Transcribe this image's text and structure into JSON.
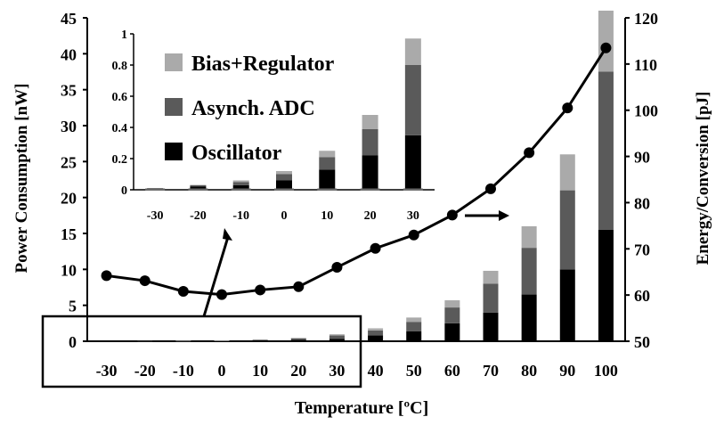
{
  "chart_data": {
    "type": "bar",
    "x_label": "Temperature [ºC]",
    "y_label_left": "Power Consumption [nW]",
    "y_label_right": "Energy/Conversion [pJ]",
    "categories": [
      "-30",
      "-20",
      "-10",
      "0",
      "10",
      "20",
      "30",
      "40",
      "50",
      "60",
      "70",
      "80",
      "90",
      "100"
    ],
    "ylim_left": [
      0,
      45
    ],
    "yticks_left": [
      0,
      5,
      10,
      15,
      20,
      25,
      30,
      35,
      40,
      45
    ],
    "ylim_right": [
      50,
      120
    ],
    "yticks_right": [
      50,
      60,
      70,
      80,
      90,
      100,
      110,
      120
    ],
    "series": [
      {
        "name": "Oscillator",
        "color": "#000000",
        "values": [
          0.01,
          0.02,
          0.03,
          0.06,
          0.13,
          0.22,
          0.35,
          0.8,
          1.4,
          2.5,
          4.0,
          6.5,
          10.0,
          15.5
        ]
      },
      {
        "name": "Asynch. ADC",
        "color": "#5a5a5a",
        "values": [
          0.0,
          0.01,
          0.02,
          0.04,
          0.08,
          0.17,
          0.45,
          0.7,
          1.3,
          2.2,
          4.0,
          6.5,
          11.0,
          22.0
        ]
      },
      {
        "name": "Bias+Regulator",
        "color": "#aaaaaa",
        "values": [
          0.0,
          0.0,
          0.01,
          0.02,
          0.04,
          0.09,
          0.17,
          0.3,
          0.6,
          1.0,
          1.8,
          3.0,
          5.0,
          8.5
        ]
      }
    ],
    "energy_line": {
      "axis": "right",
      "values": [
        64.2,
        63.1,
        60.8,
        60.1,
        61.1,
        61.8,
        66.0,
        70.1,
        73.0,
        77.3,
        83.0,
        90.8,
        100.5,
        113.5
      ]
    },
    "inset": {
      "categories": [
        "-30",
        "-20",
        "-10",
        "0",
        "10",
        "20",
        "30"
      ],
      "ylim": [
        0,
        1
      ],
      "yticks": [
        "0",
        "0.2",
        "0.4",
        "0.6",
        "0.8",
        "1"
      ]
    },
    "legend": {
      "position": "inside inset, right",
      "items": [
        "Bias+Regulator",
        "Asynch. ADC",
        "Oscillator"
      ]
    }
  }
}
